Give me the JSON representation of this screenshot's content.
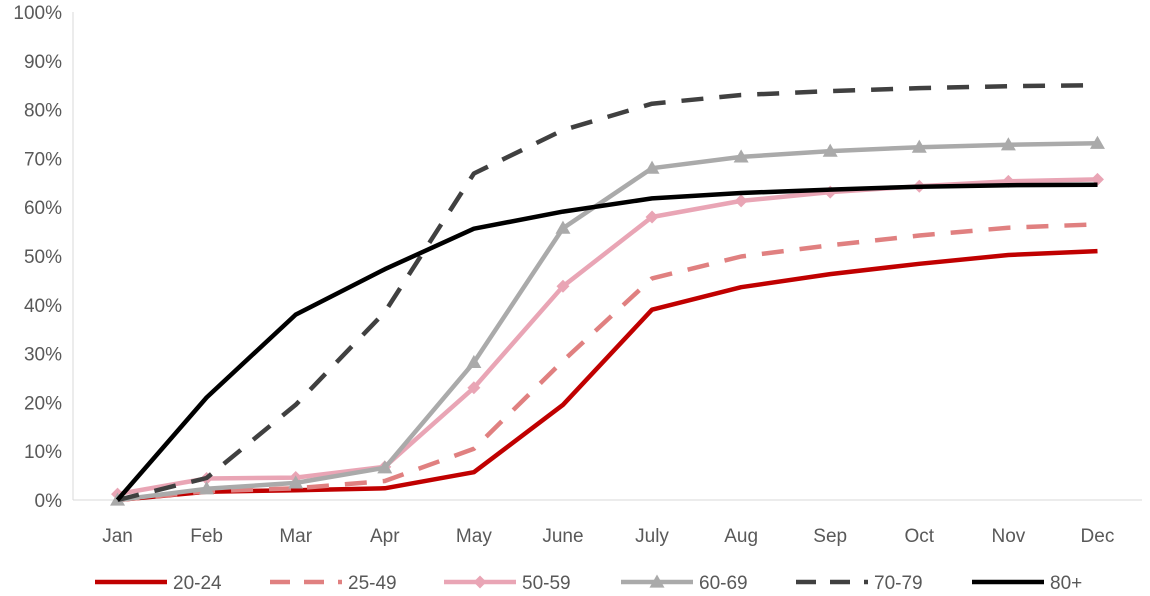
{
  "chart_data": {
    "type": "line",
    "categories": [
      "Jan",
      "Feb",
      "Mar",
      "Apr",
      "May",
      "June",
      "July",
      "Aug",
      "Sep",
      "Oct",
      "Nov",
      "Dec"
    ],
    "ylim": [
      0,
      100
    ],
    "yticks": [
      "0%",
      "10%",
      "20%",
      "30%",
      "40%",
      "50%",
      "60%",
      "70%",
      "80%",
      "90%",
      "100%"
    ],
    "grid": false,
    "legend_position": "bottom",
    "series": [
      {
        "name": "20-24",
        "color": "#C00000",
        "dash": "solid",
        "marker": "none",
        "values": [
          0,
          1.7,
          2.0,
          2.4,
          5.7,
          19.5,
          39.0,
          43.6,
          46.3,
          48.4,
          50.2,
          51.0
        ]
      },
      {
        "name": "25-49",
        "color": "#E08080",
        "dash": "dashed",
        "marker": "none",
        "values": [
          0,
          1.8,
          2.4,
          3.9,
          10.5,
          28.5,
          45.4,
          49.9,
          52.2,
          54.2,
          55.8,
          56.5
        ]
      },
      {
        "name": "50-59",
        "color": "#E9A5B5",
        "dash": "solid",
        "marker": "diamond",
        "values": [
          1.2,
          4.4,
          4.6,
          6.8,
          23.0,
          43.8,
          58.0,
          61.3,
          63.1,
          64.3,
          65.3,
          65.7
        ]
      },
      {
        "name": "60-69",
        "color": "#AAAAAA",
        "dash": "solid",
        "marker": "triangle",
        "values": [
          0,
          2.3,
          3.5,
          6.6,
          28.2,
          55.7,
          68.0,
          70.3,
          71.5,
          72.3,
          72.8,
          73.1
        ]
      },
      {
        "name": "70-79",
        "color": "#404040",
        "dash": "dashed",
        "marker": "none",
        "values": [
          0,
          4.5,
          19.5,
          38.5,
          66.9,
          75.8,
          81.2,
          83.0,
          83.8,
          84.4,
          84.8,
          85.0
        ]
      },
      {
        "name": "80+",
        "color": "#000000",
        "dash": "solid",
        "marker": "none",
        "values": [
          0,
          21.0,
          38.0,
          47.3,
          55.6,
          59.1,
          61.8,
          62.9,
          63.6,
          64.2,
          64.5,
          64.6
        ]
      }
    ]
  }
}
